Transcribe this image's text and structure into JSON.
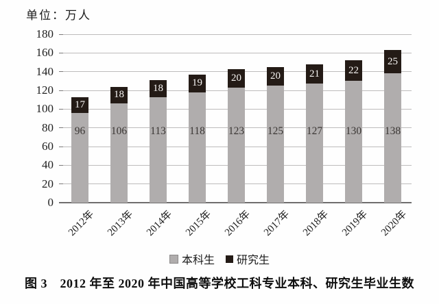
{
  "figure": {
    "caption": "图 3　2012 年至 2020 年中国高等学校工科专业本科、研究生毕业生数"
  },
  "chart_data": {
    "type": "bar",
    "stacked": true,
    "unit_label": "单位：万人",
    "categories": [
      "2012年",
      "2013年",
      "2014年",
      "2015年",
      "2016年",
      "2017年",
      "2018年",
      "2019年",
      "2020年"
    ],
    "series": [
      {
        "name": "本科生",
        "color": "#b0adad",
        "label_color": "#3a3634",
        "values": [
          96,
          106,
          113,
          118,
          123,
          125,
          127,
          130,
          138
        ]
      },
      {
        "name": "研究生",
        "color": "#241b16",
        "label_color": "#f7f5f3",
        "values": [
          17,
          18,
          18,
          19,
          20,
          20,
          21,
          22,
          25
        ]
      }
    ],
    "ylim": [
      0,
      180
    ],
    "yticks": [
      0,
      20,
      40,
      60,
      80,
      100,
      120,
      140,
      160,
      180
    ],
    "grid": true,
    "legend_position": "bottom",
    "gridline_color": "#bdbbbb",
    "axis_color": "#6f6d6d"
  }
}
